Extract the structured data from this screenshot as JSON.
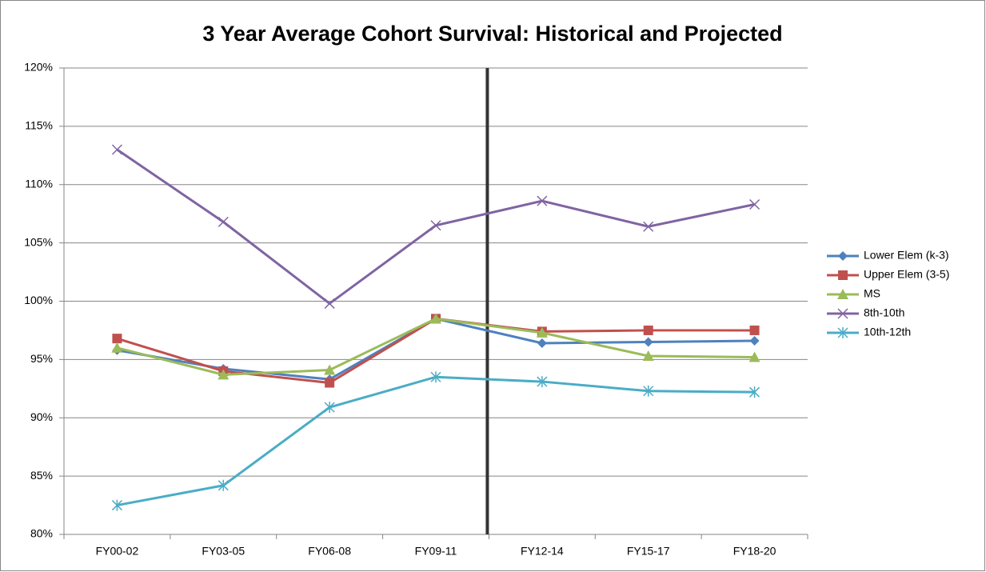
{
  "chart_data": {
    "type": "line",
    "title": "3 Year Average Cohort Survival: Historical and Projected",
    "categories": [
      "FY00-02",
      "FY03-05",
      "FY06-08",
      "FY09-11",
      "FY12-14",
      "FY15-17",
      "FY18-20"
    ],
    "series": [
      {
        "name": "Lower Elem (k-3)",
        "color": "#4f81bd",
        "marker": "diamond",
        "values": [
          95.8,
          94.2,
          93.3,
          98.5,
          96.4,
          96.5,
          96.6
        ]
      },
      {
        "name": "Upper Elem (3-5)",
        "color": "#c0504d",
        "marker": "square",
        "values": [
          96.8,
          94.0,
          93.0,
          98.5,
          97.4,
          97.5,
          97.5
        ]
      },
      {
        "name": "MS",
        "color": "#9bbb59",
        "marker": "triangle",
        "values": [
          96.0,
          93.7,
          94.1,
          98.5,
          97.3,
          95.3,
          95.2
        ]
      },
      {
        "name": "8th-10th",
        "color": "#8064a2",
        "marker": "x",
        "values": [
          113.0,
          106.8,
          99.8,
          106.5,
          108.6,
          106.4,
          108.3
        ]
      },
      {
        "name": "10th-12th",
        "color": "#4bacc6",
        "marker": "star",
        "values": [
          82.5,
          84.2,
          90.9,
          93.5,
          93.1,
          92.3,
          92.2
        ]
      }
    ],
    "ylim": [
      80,
      120
    ],
    "yticks": [
      {
        "value": 80,
        "label": "80%"
      },
      {
        "value": 85,
        "label": "85%"
      },
      {
        "value": 90,
        "label": "90%"
      },
      {
        "value": 95,
        "label": "95%"
      },
      {
        "value": 100,
        "label": "100%"
      },
      {
        "value": 105,
        "label": "105%"
      },
      {
        "value": 110,
        "label": "110%"
      },
      {
        "value": 115,
        "label": "115%"
      },
      {
        "value": 120,
        "label": "120%"
      }
    ],
    "grid": true,
    "legend": "right"
  }
}
